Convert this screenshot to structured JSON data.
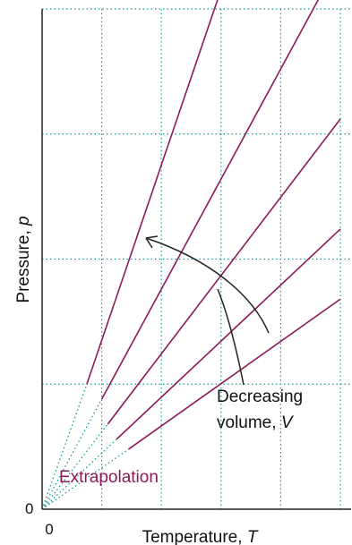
{
  "chart_data": {
    "type": "line",
    "title": "",
    "xlabel": "Temperature, T",
    "xlabel_prefix": "Temperature, ",
    "xlabel_var": "T",
    "ylabel": "Pressure, p",
    "ylabel_prefix": "Pressure, ",
    "ylabel_var": "p",
    "x_origin_label": "0",
    "y_origin_label": "0",
    "xlim": [
      0,
      100
    ],
    "ylim": [
      0,
      100
    ],
    "grid": true,
    "x_gridlines": [
      20,
      40,
      60,
      80,
      100
    ],
    "y_gridlines": [
      25,
      50,
      75,
      100
    ],
    "series": [
      {
        "x": [
          0,
          15,
          100
        ],
        "y": [
          0,
          25,
          174
        ]
      },
      {
        "x": [
          0,
          20,
          100
        ],
        "y": [
          0,
          22,
          110
        ]
      },
      {
        "x": [
          0,
          22,
          100
        ],
        "y": [
          0,
          17,
          78
        ]
      },
      {
        "x": [
          0,
          25,
          100
        ],
        "y": [
          0,
          14,
          56
        ]
      },
      {
        "x": [
          0,
          29,
          100
        ],
        "y": [
          0,
          12,
          42
        ]
      }
    ],
    "solid_from_x": [
      15,
      20,
      22,
      25,
      29
    ],
    "annotations": {
      "extrapolation": "Extrapolation",
      "decreasing_line1": "Decreasing",
      "decreasing_line2_prefix": "volume, ",
      "decreasing_var": "V"
    },
    "colors": {
      "series": "#8b1a5a",
      "grid": "#1a9a9a",
      "axis": "#222222",
      "extrapolation": "#8b1a5a",
      "arrow": "#222222"
    }
  }
}
